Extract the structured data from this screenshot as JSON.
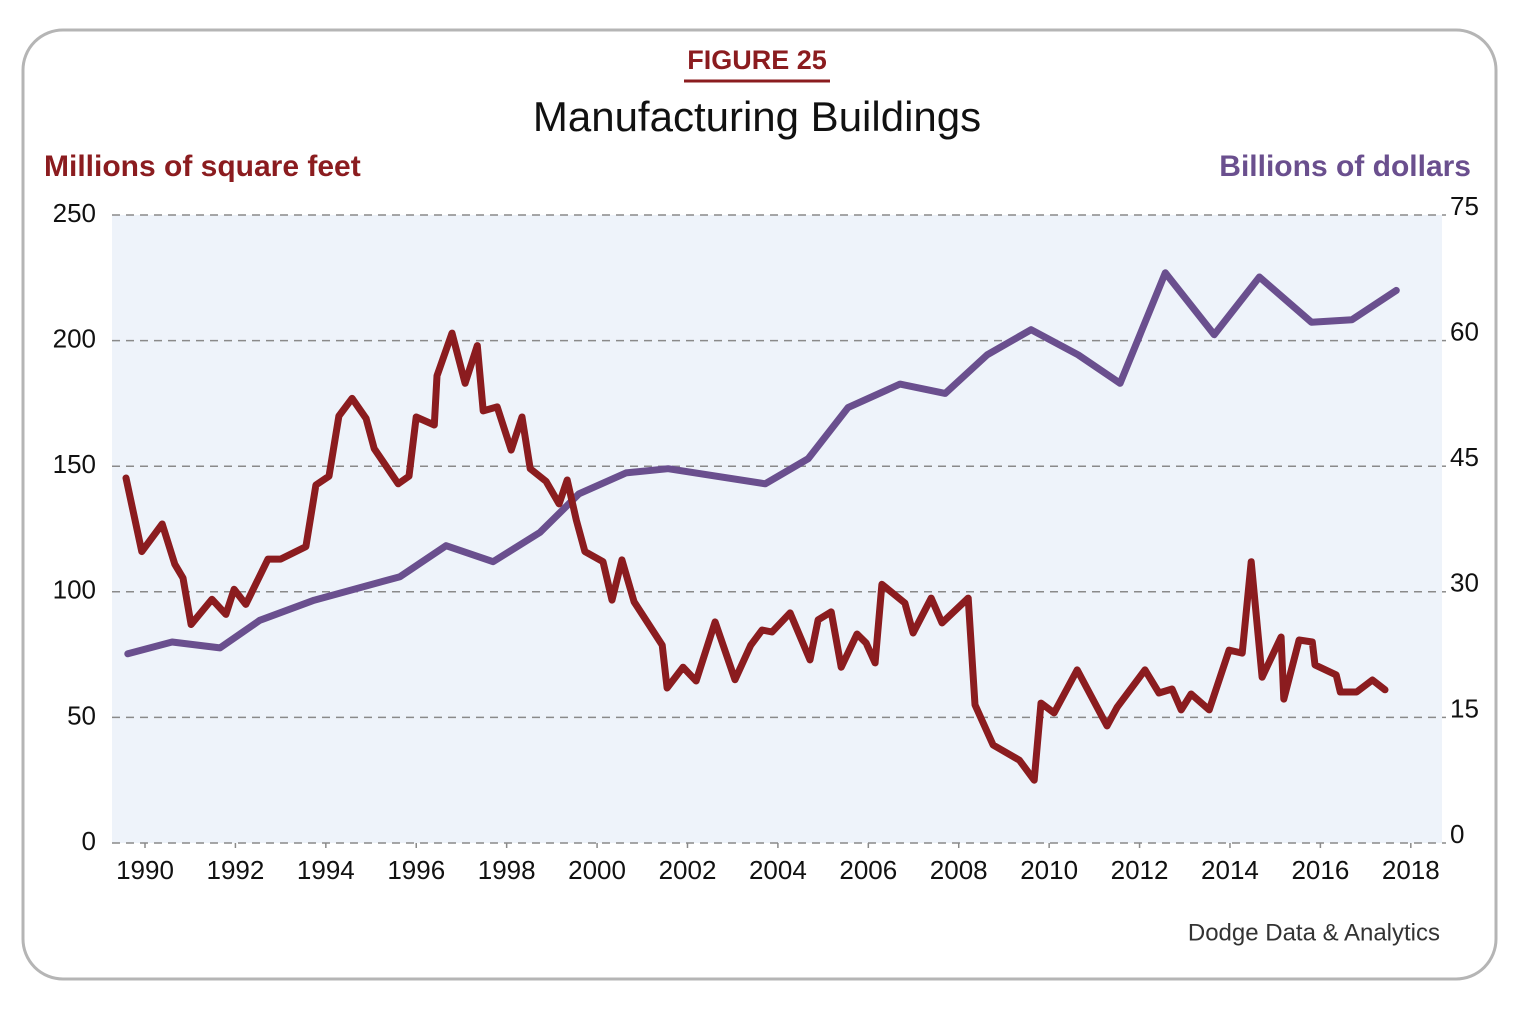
{
  "chart_data": {
    "type": "line",
    "figure_label": "FIGURE 25",
    "title": "Manufacturing Buildings",
    "y_label": "Millions of square feet",
    "y2_label": "Billions of dollars",
    "source": "Dodge Data & Analytics",
    "xlim": [
      1989.27,
      2018.69
    ],
    "xticks": [
      1990,
      1992,
      1994,
      1996,
      1998,
      2000,
      2002,
      2004,
      2006,
      2008,
      2010,
      2012,
      2014,
      2016,
      2018
    ],
    "ylim": [
      0,
      250
    ],
    "yticks": [
      0,
      50,
      100,
      150,
      200,
      250
    ],
    "y2lim": [
      0,
      75
    ],
    "y2ticks": [
      0,
      15,
      30,
      45,
      60,
      75
    ],
    "grid": true,
    "series": [
      {
        "name": "Millions of square feet",
        "color": "#8b1c1f",
        "axis": "y",
        "x": [
          1989.58,
          1989.93,
          1990.38,
          1990.66,
          1990.84,
          1991.02,
          1991.48,
          1991.79,
          1991.97,
          1992.23,
          1992.72,
          1993.0,
          1993.56,
          1993.78,
          1994.07,
          1994.29,
          1994.58,
          1994.89,
          1995.07,
          1995.6,
          1995.84,
          1996.0,
          1996.4,
          1996.46,
          1996.79,
          1997.08,
          1997.35,
          1997.48,
          1997.79,
          1998.1,
          1998.34,
          1998.52,
          1998.87,
          1999.16,
          1999.34,
          1999.54,
          1999.73,
          2000.13,
          2000.33,
          2000.55,
          2000.82,
          2001.44,
          2001.55,
          2001.9,
          2002.19,
          2002.61,
          2003.05,
          2003.4,
          2003.65,
          2003.87,
          2004.27,
          2004.71,
          2004.89,
          2005.18,
          2005.4,
          2005.75,
          2005.95,
          2006.15,
          2006.3,
          2006.81,
          2006.99,
          2007.39,
          2007.63,
          2008.21,
          2008.36,
          2008.76,
          2009.34,
          2009.67,
          2009.82,
          2010.11,
          2010.62,
          2011.28,
          2011.5,
          2012.12,
          2012.43,
          2012.72,
          2012.92,
          2013.14,
          2013.54,
          2013.98,
          2014.27,
          2014.47,
          2014.71,
          2015.13,
          2015.19,
          2015.53,
          2015.82,
          2015.88,
          2016.35,
          2016.44,
          2016.8,
          2017.15,
          2017.43
        ],
        "values": [
          145.3,
          116,
          127,
          111,
          105.5,
          87,
          97,
          91,
          101,
          95,
          113,
          113,
          118,
          142.5,
          146,
          170,
          177,
          169,
          157,
          143,
          146,
          169.6,
          166.4,
          186,
          203,
          183,
          198,
          172,
          173.6,
          156.4,
          169.6,
          149,
          144,
          135,
          144.5,
          128.6,
          116,
          112,
          96.7,
          112.7,
          96,
          78.8,
          61.7,
          70,
          64.5,
          88,
          65,
          78.8,
          84.8,
          84,
          91.6,
          72.9,
          88.8,
          92,
          70,
          83.2,
          79.6,
          71.7,
          103,
          95.5,
          83.6,
          97.5,
          87.6,
          97.5,
          55,
          39,
          33,
          25,
          55.7,
          51.8,
          68.9,
          46.6,
          54,
          68.9,
          59.7,
          61.3,
          53,
          59.3,
          53,
          76.8,
          75.6,
          112,
          66,
          82,
          57.3,
          80.8,
          80,
          70.9,
          66.9,
          60.1,
          60.1,
          64.9,
          61
        ]
      },
      {
        "name": "Billions of dollars",
        "color": "#6a4f8e",
        "axis": "y2",
        "x": [
          1989.62,
          1990.6,
          1991.66,
          1992.54,
          1993.74,
          1995.64,
          1996.66,
          1997.7,
          1998.74,
          1999.6,
          2000.64,
          2001.57,
          2003.72,
          2004.67,
          2005.55,
          2006.7,
          2007.7,
          2008.63,
          2009.6,
          2010.64,
          2011.57,
          2012.57,
          2013.65,
          2014.65,
          2015.8,
          2016.7,
          2017.68
        ],
        "values": [
          22.6,
          24.0,
          23.3,
          26.6,
          29.0,
          31.8,
          35.5,
          33.6,
          37.1,
          41.7,
          44.2,
          44.7,
          42.9,
          45.9,
          52.0,
          54.8,
          53.7,
          58.3,
          61.3,
          58.3,
          54.9,
          68.1,
          60.7,
          67.6,
          62.2,
          62.5,
          66.0
        ]
      }
    ]
  }
}
